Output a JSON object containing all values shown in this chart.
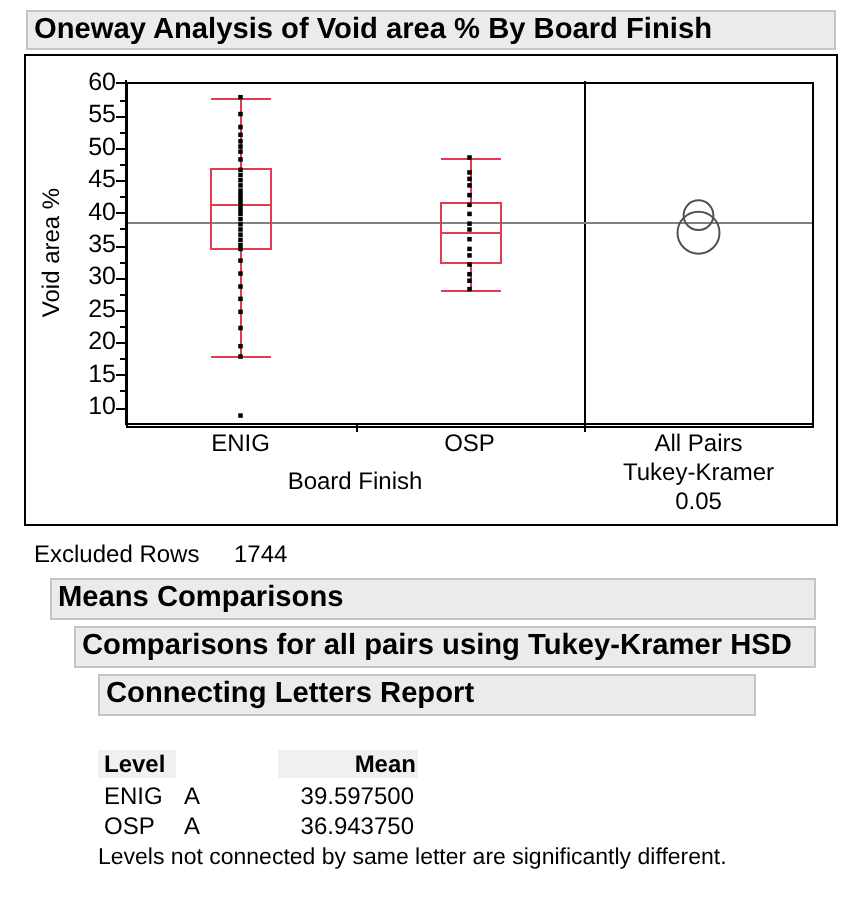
{
  "chart_data": {
    "type": "box",
    "title": "Oneway Analysis of Void area % By Board Finish",
    "xlabel": "Board Finish",
    "ylabel": "Void area %",
    "categories": [
      "ENIG",
      "OSP",
      "All Pairs Tukey-Kramer 0.05"
    ],
    "series": [
      {
        "color": "#e33a4f",
        "boxes": [
          {
            "low": 17.8,
            "q1": 34.4,
            "median": 41.2,
            "q3": 46.8,
            "high": 57.8
          },
          {
            "low": 28.2,
            "q1": 32.4,
            "median": 37.1,
            "q3": 41.6,
            "high": 48.5
          },
          null
        ]
      },
      {
        "type": "scatter",
        "color": "#000000",
        "marker": "square",
        "x": [
          "ENIG",
          "ENIG",
          "ENIG",
          "ENIG",
          "ENIG",
          "ENIG",
          "ENIG",
          "ENIG",
          "ENIG",
          "ENIG",
          "ENIG",
          "ENIG",
          "ENIG",
          "ENIG",
          "ENIG",
          "ENIG",
          "ENIG",
          "ENIG",
          "ENIG",
          "ENIG",
          "ENIG",
          "ENIG",
          "ENIG",
          "ENIG",
          "ENIG",
          "ENIG",
          "ENIG",
          "ENIG",
          "ENIG",
          "ENIG",
          "ENIG",
          "ENIG",
          "ENIG",
          "ENIG",
          "ENIG",
          "OSP",
          "OSP",
          "OSP",
          "OSP",
          "OSP",
          "OSP",
          "OSP",
          "OSP",
          "OSP",
          "OSP",
          "OSP",
          "OSP",
          "OSP",
          "OSP",
          "OSP",
          "OSP"
        ],
        "values": [
          57.8,
          55.2,
          53.2,
          52.0,
          51.0,
          50.2,
          49.4,
          48.2,
          46.6,
          45.8,
          45.0,
          44.2,
          43.4,
          42.8,
          42.2,
          41.6,
          41.0,
          40.4,
          39.8,
          39.0,
          38.2,
          37.4,
          36.6,
          35.8,
          35.0,
          34.4,
          32.6,
          30.6,
          28.6,
          26.7,
          24.7,
          22.2,
          19.4,
          17.8,
          8.7,
          48.5,
          46.2,
          45.2,
          44.2,
          42.7,
          41.2,
          39.8,
          38.3,
          37.4,
          35.9,
          34.4,
          33.4,
          32.0,
          30.5,
          29.5,
          28.2
        ]
      },
      {
        "type": "bubble",
        "color": "#505050",
        "x": [
          "All Pairs Tukey-Kramer 0.05",
          "All Pairs Tukey-Kramer 0.05"
        ],
        "values": [
          39.6,
          36.9
        ],
        "sizes": [
          0.5,
          1
        ]
      }
    ],
    "ylim": [
      7.4,
      60.3
    ],
    "yticks": [
      10,
      {
        "value": 12.5,
        "label": null
      },
      15,
      {
        "value": 17.5,
        "label": null
      },
      20,
      {
        "value": 22.5,
        "label": null
      },
      25,
      {
        "value": 27.5,
        "label": null
      },
      30,
      {
        "value": 32.5,
        "label": null
      },
      35,
      {
        "value": 37.5,
        "label": null
      },
      40,
      {
        "value": 42.5,
        "label": null
      },
      45,
      {
        "value": 47.5,
        "label": null
      },
      50,
      {
        "value": 52.5,
        "label": null
      },
      55,
      {
        "value": 57.5,
        "label": null
      },
      60
    ],
    "ref_lines": [
      {
        "axis": "y",
        "value": 38.5,
        "color": "#808080"
      }
    ],
    "annotations": [
      "Excluded Rows",
      "1744",
      "Means Comparisons",
      "Comparisons for all pairs using Tukey-Kramer HSD",
      "Connecting Letters Report",
      "Level",
      "Mean",
      "ENIG",
      "A",
      "39.597500",
      "OSP",
      "A",
      "36.943750",
      "Levels not connected by same letter are significantly different."
    ]
  }
}
